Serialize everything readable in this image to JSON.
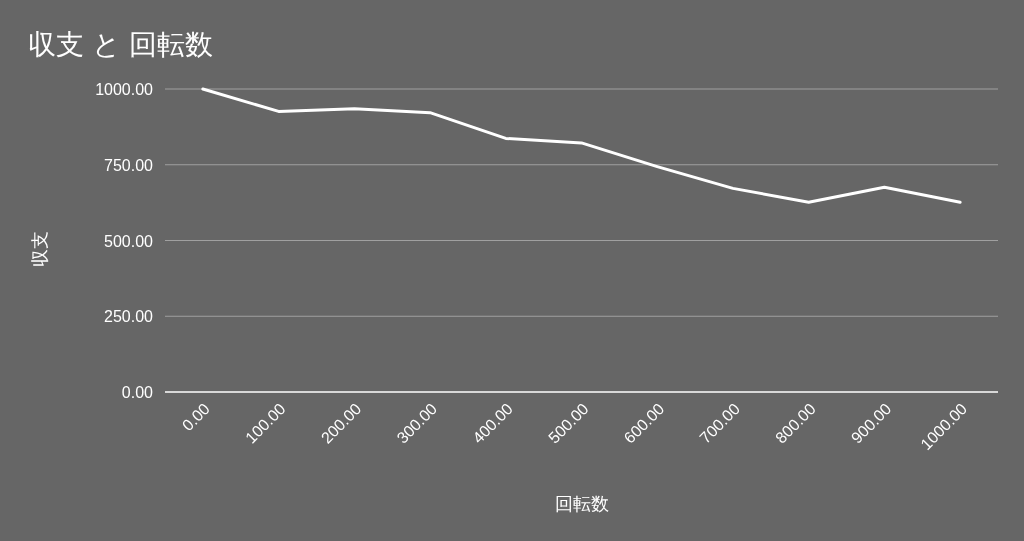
{
  "chart_data": {
    "type": "line",
    "title": "収支 と 回転数",
    "xlabel": "回転数",
    "ylabel": "収支",
    "x": [
      0,
      100,
      200,
      300,
      400,
      500,
      600,
      700,
      800,
      900,
      1000
    ],
    "series": [
      {
        "color": "#ffffff",
        "values": [
          1000,
          926,
          935,
          922,
          837,
          822,
          744,
          672,
          626,
          676,
          626
        ]
      }
    ],
    "xlim": [
      -50,
      1050
    ],
    "ylim": [
      0,
      1000
    ],
    "xticks": [
      {
        "value": 0,
        "label": "0.00"
      },
      {
        "value": 100,
        "label": "100.00"
      },
      {
        "value": 200,
        "label": "200.00"
      },
      {
        "value": 300,
        "label": "300.00"
      },
      {
        "value": 400,
        "label": "400.00"
      },
      {
        "value": 500,
        "label": "500.00"
      },
      {
        "value": 600,
        "label": "600.00"
      },
      {
        "value": 700,
        "label": "700.00"
      },
      {
        "value": 800,
        "label": "800.00"
      },
      {
        "value": 900,
        "label": "900.00"
      },
      {
        "value": 1000,
        "label": "1000.00"
      }
    ],
    "yticks": [
      {
        "value": 0,
        "label": "0.00"
      },
      {
        "value": 250,
        "label": "250.00"
      },
      {
        "value": 500,
        "label": "500.00"
      },
      {
        "value": 750,
        "label": "750.00"
      },
      {
        "value": 1000,
        "label": "1000.00"
      }
    ],
    "grid": "y",
    "line_style": "solid",
    "marker": "none"
  }
}
